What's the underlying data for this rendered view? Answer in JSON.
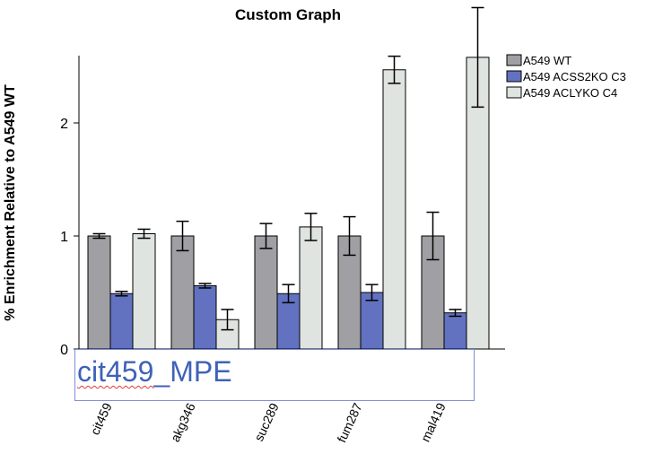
{
  "chart_data": {
    "type": "bar",
    "title": "Custom Graph",
    "xlabel": "",
    "ylabel": "% Enrichment Relative to A549 WT",
    "categories": [
      "cit459",
      "akg346",
      "suc289",
      "fum287",
      "mal419"
    ],
    "y_ticks": [
      "0",
      "1",
      "2"
    ],
    "ylim": [
      0,
      2.6
    ],
    "legend_position": "top-right",
    "series": [
      {
        "name": "A549 WT",
        "color": "#a0a0a4",
        "values": [
          1.0,
          1.0,
          1.0,
          1.0,
          1.0
        ],
        "errors": [
          0.02,
          0.13,
          0.11,
          0.17,
          0.21
        ]
      },
      {
        "name": "A549 ACSS2KO C3",
        "color": "#6272c0",
        "values": [
          0.49,
          0.56,
          0.49,
          0.5,
          0.32
        ],
        "errors": [
          0.02,
          0.02,
          0.08,
          0.07,
          0.03
        ]
      },
      {
        "name": "A549 ACLYKO C4",
        "color": "#e0e4e0",
        "values": [
          1.02,
          0.26,
          1.08,
          2.47,
          2.58
        ],
        "errors": [
          0.04,
          0.09,
          0.12,
          0.12,
          0.44
        ]
      }
    ],
    "highlighted_category": "cit459",
    "highlight_color": "#e53935"
  },
  "editor": {
    "text_main": "cit459",
    "text_rest": "_MPE"
  }
}
